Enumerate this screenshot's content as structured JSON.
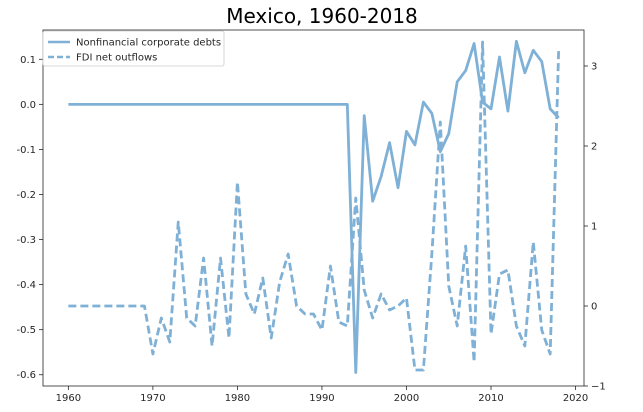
{
  "chart_data": {
    "type": "line",
    "title": "Mexico, 1960-2018",
    "xlabel": "",
    "ylabel": "",
    "xlim": [
      1957,
      2021
    ],
    "ylim_left": [
      -0.625,
      0.165
    ],
    "ylim_right": [
      -1.0,
      3.45
    ],
    "x_ticks": [
      1960,
      1970,
      1980,
      1990,
      2000,
      2010,
      2020
    ],
    "y_ticks_left": [
      -0.6,
      -0.5,
      -0.4,
      -0.3,
      -0.2,
      -0.1,
      0.0,
      0.1
    ],
    "y_ticks_left_labels": [
      "-0.6",
      "-0.5",
      "-0.4",
      "-0.3",
      "-0.2",
      "-0.1",
      "0.0",
      "0.1"
    ],
    "y_ticks_right": [
      -1,
      0,
      1,
      2,
      3
    ],
    "y_ticks_right_labels": [
      "−1",
      "0",
      "1",
      "2",
      "3"
    ],
    "grid": false,
    "legend_position": "top-left",
    "color": "#7fb0d6",
    "series": [
      {
        "name": "Nonfinancial corporate debts",
        "axis": "left",
        "style": "solid",
        "x": [
          1960,
          1961,
          1962,
          1963,
          1964,
          1965,
          1966,
          1967,
          1968,
          1969,
          1970,
          1971,
          1972,
          1973,
          1974,
          1975,
          1976,
          1977,
          1978,
          1979,
          1980,
          1981,
          1982,
          1983,
          1984,
          1985,
          1986,
          1987,
          1988,
          1989,
          1990,
          1991,
          1992,
          1993,
          1994,
          1995,
          1996,
          1997,
          1998,
          1999,
          2000,
          2001,
          2002,
          2003,
          2004,
          2005,
          2006,
          2007,
          2008,
          2009,
          2010,
          2011,
          2012,
          2013,
          2014,
          2015,
          2016,
          2017,
          2018
        ],
        "values": [
          0,
          0,
          0,
          0,
          0,
          0,
          0,
          0,
          0,
          0,
          0,
          0,
          0,
          0,
          0,
          0,
          0,
          0,
          0,
          0,
          0,
          0,
          0,
          0,
          0,
          0,
          0,
          0,
          0,
          0,
          0,
          0,
          0,
          0,
          -0.595,
          -0.025,
          -0.215,
          -0.16,
          -0.085,
          -0.185,
          -0.06,
          -0.09,
          0.005,
          -0.02,
          -0.105,
          -0.065,
          0.05,
          0.075,
          0.135,
          0.005,
          -0.01,
          0.105,
          -0.015,
          0.14,
          0.07,
          0.12,
          0.095,
          -0.01,
          -0.03
        ]
      },
      {
        "name": "FDI net outflows",
        "axis": "right",
        "style": "dashed",
        "x": [
          1960,
          1961,
          1962,
          1963,
          1964,
          1965,
          1966,
          1967,
          1968,
          1969,
          1970,
          1971,
          1972,
          1973,
          1974,
          1975,
          1976,
          1977,
          1978,
          1979,
          1980,
          1981,
          1982,
          1983,
          1984,
          1985,
          1986,
          1987,
          1988,
          1989,
          1990,
          1991,
          1992,
          1993,
          1994,
          1995,
          1996,
          1997,
          1998,
          1999,
          2000,
          2001,
          2002,
          2003,
          2004,
          2005,
          2006,
          2007,
          2008,
          2009,
          2010,
          2011,
          2012,
          2013,
          2014,
          2015,
          2016,
          2017,
          2018
        ],
        "values": [
          0,
          0,
          0,
          0,
          0,
          0,
          0,
          0,
          0,
          0,
          -0.6,
          -0.15,
          -0.45,
          1.05,
          -0.15,
          -0.25,
          0.6,
          -0.5,
          0.6,
          -0.4,
          1.55,
          0.15,
          -0.1,
          0.35,
          -0.4,
          0.3,
          0.65,
          0,
          -0.1,
          -0.1,
          -0.3,
          0.5,
          -0.2,
          -0.25,
          1.35,
          0.2,
          -0.15,
          0.15,
          -0.05,
          0,
          0.1,
          -0.8,
          -0.8,
          0.65,
          2.3,
          0.25,
          -0.25,
          0.75,
          -0.7,
          3.3,
          -0.35,
          0.4,
          0.45,
          -0.25,
          -0.5,
          0.8,
          -0.3,
          -0.6,
          3.2
        ]
      }
    ]
  }
}
